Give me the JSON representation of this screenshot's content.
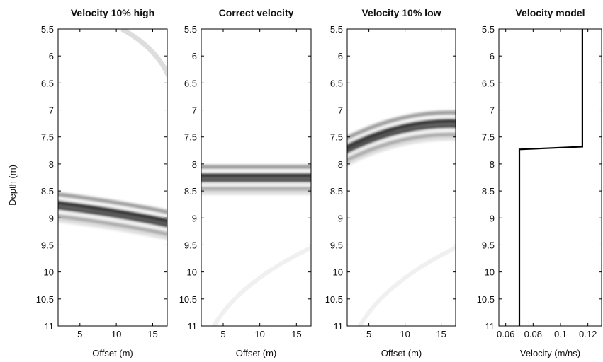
{
  "figure": {
    "ylabel": "Depth (m)"
  },
  "chart_data": [
    {
      "type": "heatmap",
      "title": "Velocity 10% high",
      "xlabel": "Offset (m)",
      "ylabel": "Depth (m)",
      "xlim": [
        2,
        17
      ],
      "ylim": [
        11,
        5.5
      ],
      "x_ticks": [
        5,
        10,
        15
      ],
      "y_ticks": [
        5.5,
        6,
        6.5,
        7,
        7.5,
        8,
        8.5,
        9,
        9.5,
        10,
        10.5,
        11
      ],
      "reflector": {
        "depth_at_start": 8.75,
        "depth_at_end": 9.1,
        "curvature": 0.15
      },
      "secondary_event": "faint arc near top-right"
    },
    {
      "type": "heatmap",
      "title": "Correct velocity",
      "xlabel": "Offset (m)",
      "ylabel": "Depth (m)",
      "xlim": [
        2,
        17
      ],
      "ylim": [
        11,
        5.5
      ],
      "x_ticks": [
        5,
        10,
        15
      ],
      "y_ticks": [
        5.5,
        6,
        6.5,
        7,
        7.5,
        8,
        8.5,
        9,
        9.5,
        10,
        10.5,
        11
      ],
      "reflector": {
        "depth_at_start": 8.25,
        "depth_at_end": 8.25,
        "curvature": 0.0
      },
      "secondary_event": "faint arc near bottom"
    },
    {
      "type": "heatmap",
      "title": "Velocity 10% low",
      "xlabel": "Offset (m)",
      "ylabel": "Depth (m)",
      "xlim": [
        2,
        17
      ],
      "ylim": [
        11,
        5.5
      ],
      "x_ticks": [
        5,
        10,
        15
      ],
      "y_ticks": [
        5.5,
        6,
        6.5,
        7,
        7.5,
        8,
        8.5,
        9,
        9.5,
        10,
        10.5,
        11
      ],
      "reflector": {
        "depth_at_start": 7.75,
        "depth_at_end": 7.25,
        "curvature": 0.3
      },
      "secondary_event": "faint arc near bottom"
    },
    {
      "type": "line",
      "title": "Velocity model",
      "xlabel": "Velocity (m/ns)",
      "ylabel": "Depth (m)",
      "xlim": [
        0.055,
        0.13
      ],
      "ylim": [
        11,
        5.5
      ],
      "x_ticks": [
        0.06,
        0.08,
        0.1,
        0.12
      ],
      "x_tick_labels": [
        "0.06",
        "0.08",
        "0.1",
        "0.12"
      ],
      "y_ticks": [
        5.5,
        6,
        6.5,
        7,
        7.5,
        8,
        8.5,
        9,
        9.5,
        10,
        10.5,
        11
      ],
      "series": [
        {
          "x": [
            0.116,
            0.116,
            0.07,
            0.07
          ],
          "y": [
            5.5,
            7.68,
            7.73,
            11
          ]
        }
      ]
    }
  ]
}
